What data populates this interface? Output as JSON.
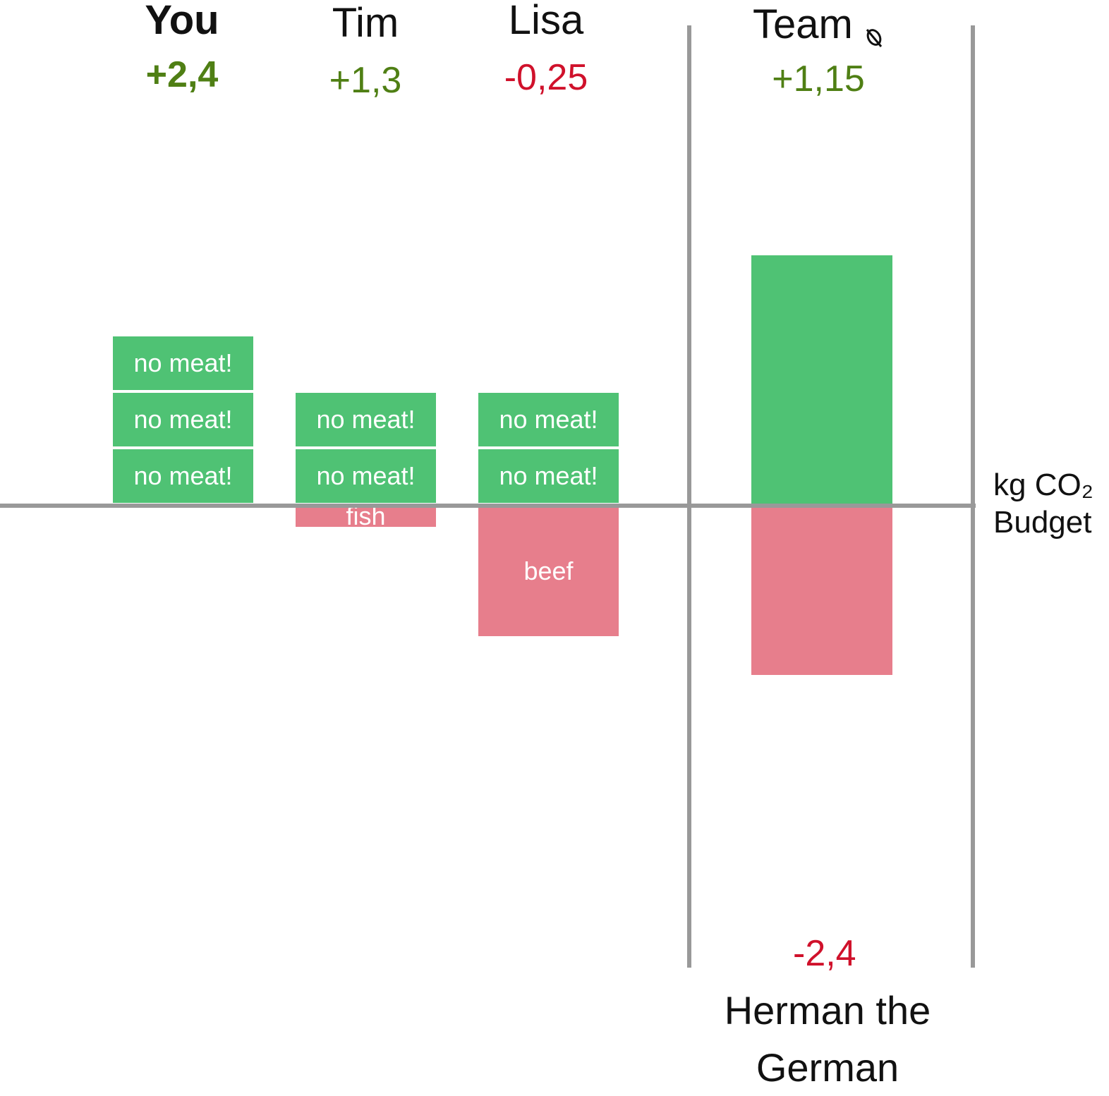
{
  "colors": {
    "positive_block": "#4FC274",
    "negative_block": "#E77E8C",
    "positive_text": "#4F7F14",
    "negative_text": "#D0112B",
    "axis": "#999999"
  },
  "players": [
    {
      "name": "You",
      "score": "+2,4",
      "score_sign": "positive",
      "bold": true
    },
    {
      "name": "Tim",
      "score": "+1,3",
      "score_sign": "positive",
      "bold": false
    },
    {
      "name": "Lisa",
      "score": "-0,25",
      "score_sign": "negative",
      "bold": false
    }
  ],
  "team": {
    "name": "Team",
    "icon": "broken-link-icon",
    "score": "+1,15",
    "score_sign": "positive"
  },
  "herman": {
    "name_line1": "Herman the",
    "name_line2": "German",
    "score": "-2,4",
    "score_sign": "negative"
  },
  "axis_label": {
    "line1": "kg CO₂",
    "line2": "Budget"
  },
  "chart_data": {
    "type": "bar",
    "title": "",
    "ylabel": "kg CO₂ Budget",
    "categories": [
      "You",
      "Tim",
      "Lisa",
      "Team"
    ],
    "segments": [
      {
        "category": "You",
        "stack": [
          {
            "label": "no meat!",
            "value": 0.8,
            "kind": "positive"
          },
          {
            "label": "no meat!",
            "value": 0.8,
            "kind": "positive"
          },
          {
            "label": "no meat!",
            "value": 0.8,
            "kind": "positive"
          }
        ]
      },
      {
        "category": "Tim",
        "stack": [
          {
            "label": "no meat!",
            "value": 0.8,
            "kind": "positive"
          },
          {
            "label": "no meat!",
            "value": 0.8,
            "kind": "positive"
          },
          {
            "label": "fish",
            "value": -0.3,
            "kind": "negative"
          }
        ]
      },
      {
        "category": "Lisa",
        "stack": [
          {
            "label": "no meat!",
            "value": 0.8,
            "kind": "positive"
          },
          {
            "label": "no meat!",
            "value": 0.8,
            "kind": "positive"
          },
          {
            "label": "beef",
            "value": -1.85,
            "kind": "negative"
          }
        ]
      },
      {
        "category": "Team",
        "stack": [
          {
            "label": "",
            "value": 3.55,
            "kind": "positive"
          },
          {
            "label": "",
            "value": -2.4,
            "kind": "negative"
          }
        ]
      }
    ],
    "ylim": [
      -2.4,
      3.55
    ]
  }
}
